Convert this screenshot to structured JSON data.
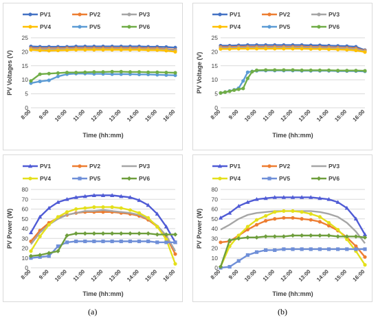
{
  "captions": [
    "(a)",
    "(b)"
  ],
  "colors": {
    "PV1": "#4472C4",
    "PV2": "#ED7D31",
    "PV3": "#A5A5A5",
    "PV4": "#FFC000",
    "PV5": "#5B9BD5",
    "PV6": "#70AD47",
    "PV1_power": "#4F5BD5",
    "PV4_power": "#E4E01B",
    "PV5_power": "#6F8FD8",
    "PV6_power": "#6E9E3C",
    "grid": "#d9d9d9"
  },
  "chart_data": [
    {
      "type": "line",
      "panel": "top-left",
      "ylabel": "PV Voltages (V)",
      "xlabel": "Time (hh:mm)",
      "ylim": [
        0,
        25
      ],
      "yticks": [
        0,
        5,
        10,
        15,
        20,
        25
      ],
      "x_ticks": [
        "8:00",
        "9:00",
        "10:00",
        "11:00",
        "12:00",
        "13:00",
        "14:00",
        "15:00",
        "16:00"
      ],
      "x_range": [
        8,
        16
      ],
      "marker": "circle",
      "grid": true,
      "legend_position": "top",
      "series": [
        {
          "name": "PV1",
          "x": [
            8,
            8.5,
            9,
            9.5,
            10,
            10.5,
            11,
            11.5,
            12,
            12.5,
            13,
            13.5,
            14,
            14.5,
            15,
            15.5,
            16
          ],
          "values": [
            21.9,
            21.8,
            21.8,
            21.8,
            21.8,
            21.9,
            21.9,
            21.9,
            21.9,
            21.9,
            21.9,
            21.9,
            21.9,
            21.8,
            21.8,
            21.7,
            21.5
          ]
        },
        {
          "name": "PV2",
          "x": [
            8,
            8.5,
            9,
            9.5,
            10,
            10.5,
            11,
            11.5,
            12,
            12.5,
            13,
            13.5,
            14,
            14.5,
            15,
            15.5,
            16
          ],
          "values": [
            21.3,
            21.2,
            21.2,
            21.2,
            21.3,
            21.3,
            21.3,
            21.3,
            21.3,
            21.3,
            21.3,
            21.3,
            21.3,
            21.2,
            21.2,
            21.0,
            20.7
          ]
        },
        {
          "name": "PV3",
          "x": [
            8,
            8.5,
            9,
            9.5,
            10,
            10.5,
            11,
            11.5,
            12,
            12.5,
            13,
            13.5,
            14,
            14.5,
            15,
            15.5,
            16
          ],
          "values": [
            21.0,
            20.9,
            20.9,
            20.9,
            21.0,
            21.0,
            21.0,
            21.0,
            21.0,
            21.0,
            21.0,
            21.0,
            21.0,
            20.9,
            20.9,
            20.8,
            20.5
          ]
        },
        {
          "name": "PV4",
          "x": [
            8,
            8.5,
            9,
            9.5,
            10,
            10.5,
            11,
            11.5,
            12,
            12.5,
            13,
            13.5,
            14,
            14.5,
            15,
            15.5,
            16
          ],
          "values": [
            20.7,
            20.5,
            20.4,
            20.5,
            20.6,
            20.7,
            20.7,
            20.7,
            20.7,
            20.7,
            20.7,
            20.7,
            20.7,
            20.6,
            20.6,
            20.4,
            20.0
          ]
        },
        {
          "name": "PV5",
          "x": [
            8,
            8.5,
            9,
            9.5,
            10,
            10.5,
            11,
            11.5,
            12,
            12.5,
            13,
            13.5,
            14,
            14.5,
            15,
            15.5,
            16
          ],
          "values": [
            8.8,
            9.4,
            9.8,
            11.2,
            12.0,
            12.2,
            12.2,
            12.1,
            12.1,
            12.0,
            12.0,
            12.0,
            11.9,
            11.9,
            11.8,
            11.7,
            11.6
          ]
        },
        {
          "name": "PV6",
          "x": [
            8,
            8.5,
            9,
            9.5,
            10,
            10.5,
            11,
            11.5,
            12,
            12.5,
            13,
            13.5,
            14,
            14.5,
            15,
            15.5,
            16
          ],
          "values": [
            9.6,
            12.0,
            12.2,
            12.4,
            12.6,
            12.6,
            12.7,
            12.8,
            12.8,
            12.9,
            12.9,
            12.8,
            12.8,
            12.7,
            12.7,
            12.6,
            12.5
          ]
        }
      ]
    },
    {
      "type": "line",
      "panel": "top-right",
      "ylabel": "PV Voltage (V)",
      "xlabel": "Time (hh:mm)",
      "ylim": [
        0,
        25
      ],
      "yticks": [
        0,
        5,
        10,
        15,
        20,
        25
      ],
      "x_ticks": [
        "8:00",
        "9:00",
        "10:00",
        "11:00",
        "12:00",
        "13:00",
        "14:00",
        "15:00",
        "16:00"
      ],
      "x_range": [
        8,
        16
      ],
      "marker": "circle",
      "grid": true,
      "legend_position": "top",
      "series": [
        {
          "name": "PV1",
          "x": [
            8,
            8.5,
            9,
            9.5,
            10,
            10.5,
            11,
            11.5,
            12,
            12.5,
            13,
            13.5,
            14,
            14.5,
            15,
            15.5,
            16
          ],
          "values": [
            22.2,
            22.2,
            22.3,
            22.4,
            22.4,
            22.4,
            22.4,
            22.4,
            22.4,
            22.4,
            22.3,
            22.3,
            22.2,
            22.1,
            22.0,
            21.8,
            20.6
          ]
        },
        {
          "name": "PV2",
          "x": [
            8,
            8.5,
            9,
            9.5,
            10,
            10.5,
            11,
            11.5,
            12,
            12.5,
            13,
            13.5,
            14,
            14.5,
            15,
            15.5,
            16
          ],
          "values": [
            21.7,
            21.7,
            21.8,
            21.8,
            21.8,
            21.8,
            21.8,
            21.8,
            21.8,
            21.8,
            21.7,
            21.7,
            21.6,
            21.5,
            21.4,
            21.2,
            20.4
          ]
        },
        {
          "name": "PV3",
          "x": [
            8,
            8.5,
            9,
            9.5,
            10,
            10.5,
            11,
            11.5,
            12,
            12.5,
            13,
            13.5,
            14,
            14.5,
            15,
            15.5,
            16
          ],
          "values": [
            21.4,
            21.4,
            21.5,
            21.5,
            21.5,
            21.5,
            21.5,
            21.5,
            21.5,
            21.5,
            21.4,
            21.4,
            21.3,
            21.2,
            21.1,
            20.9,
            20.2
          ]
        },
        {
          "name": "PV4",
          "x": [
            8,
            8.5,
            9,
            9.5,
            10,
            10.5,
            11,
            11.5,
            12,
            12.5,
            13,
            13.5,
            14,
            14.5,
            15,
            15.5,
            16
          ],
          "values": [
            21.0,
            21.0,
            21.1,
            21.1,
            21.1,
            21.1,
            21.1,
            21.1,
            21.1,
            21.1,
            21.0,
            21.0,
            20.9,
            20.8,
            20.7,
            20.5,
            19.9
          ]
        },
        {
          "name": "PV5",
          "x": [
            8,
            8.25,
            8.5,
            8.75,
            9,
            9.25,
            9.5,
            9.75,
            10,
            10.5,
            11,
            11.5,
            12,
            12.5,
            13,
            13.5,
            14,
            14.5,
            15,
            15.5,
            16
          ],
          "values": [
            5.3,
            5.6,
            6.0,
            6.4,
            7.0,
            9.6,
            12.7,
            13.0,
            13.2,
            13.3,
            13.3,
            13.3,
            13.3,
            13.2,
            13.2,
            13.2,
            13.2,
            13.1,
            13.1,
            13.1,
            13.0
          ]
        },
        {
          "name": "PV6",
          "x": [
            8,
            8.25,
            8.5,
            8.75,
            9,
            9.25,
            9.5,
            9.75,
            10,
            10.5,
            11,
            11.5,
            12,
            12.5,
            13,
            13.5,
            14,
            14.5,
            15,
            15.5,
            16
          ],
          "values": [
            5.3,
            5.6,
            5.9,
            6.3,
            6.6,
            6.9,
            10.5,
            12.9,
            13.4,
            13.5,
            13.5,
            13.5,
            13.5,
            13.4,
            13.4,
            13.4,
            13.4,
            13.3,
            13.3,
            13.3,
            13.2
          ]
        }
      ]
    },
    {
      "type": "line",
      "panel": "bottom-left",
      "ylabel": "PV Power (W)",
      "xlabel": "Time (hh:mm)",
      "ylim": [
        0,
        80
      ],
      "yticks": [
        0,
        10,
        20,
        30,
        40,
        50,
        60,
        70,
        80
      ],
      "x_ticks": [
        "8:00",
        "9:00",
        "10:00",
        "11:00",
        "12:00",
        "13:00",
        "14:00",
        "15:00",
        "16:00"
      ],
      "x_range": [
        8,
        16
      ],
      "grid": true,
      "legend_position": "top",
      "series": [
        {
          "name": "PV1",
          "marker": "triangle",
          "x": [
            8,
            8.5,
            9,
            9.5,
            10,
            10.5,
            11,
            11.5,
            12,
            12.5,
            13,
            13.5,
            14,
            14.5,
            15,
            15.5,
            16
          ],
          "values": [
            36,
            52,
            61,
            67,
            70,
            72,
            73,
            74,
            74,
            74,
            73,
            72,
            69,
            64,
            55,
            42,
            26
          ]
        },
        {
          "name": "PV2",
          "marker": "circle",
          "x": [
            8,
            8.5,
            9,
            9.5,
            10,
            10.5,
            11,
            11.5,
            12,
            12.5,
            13,
            13.5,
            14,
            14.5,
            15,
            15.5,
            16
          ],
          "values": [
            27,
            38,
            46,
            51,
            54,
            56,
            57,
            57,
            57,
            57,
            56,
            55,
            53,
            49,
            42,
            32,
            14
          ]
        },
        {
          "name": "PV3",
          "marker": "none",
          "x": [
            8,
            8.5,
            9,
            9.5,
            10,
            10.5,
            11,
            11.5,
            12,
            12.5,
            13,
            13.5,
            14,
            14.5,
            15,
            15.5,
            16
          ],
          "values": [
            24,
            36,
            44,
            50,
            54,
            56,
            58,
            58,
            59,
            58,
            57,
            56,
            54,
            50,
            43,
            33,
            17
          ]
        },
        {
          "name": "PV4",
          "marker": "circle",
          "x": [
            8,
            8.5,
            9,
            9.5,
            10,
            10.5,
            11,
            11.5,
            12,
            12.5,
            13,
            13.5,
            14,
            14.5,
            15,
            15.5,
            16
          ],
          "values": [
            17,
            32,
            44,
            52,
            57,
            60,
            61,
            62,
            62,
            62,
            61,
            59,
            56,
            51,
            42,
            29,
            4
          ]
        },
        {
          "name": "PV5",
          "marker": "square",
          "x": [
            8,
            8.5,
            9,
            9.5,
            10,
            10.5,
            11,
            11.5,
            12,
            12.5,
            13,
            13.5,
            14,
            14.5,
            15,
            15.5,
            16
          ],
          "values": [
            10,
            11,
            12,
            22,
            26,
            27,
            27,
            27,
            27,
            27,
            27,
            27,
            27,
            27,
            26,
            26,
            26
          ]
        },
        {
          "name": "PV6",
          "marker": "diamond",
          "x": [
            8,
            8.5,
            9,
            9.5,
            10,
            10.5,
            11,
            11.5,
            12,
            12.5,
            13,
            13.5,
            14,
            14.5,
            15,
            15.5,
            16
          ],
          "values": [
            12,
            13,
            15,
            17,
            33,
            35,
            35,
            35,
            35,
            35,
            35,
            35,
            35,
            35,
            34,
            34,
            34
          ]
        }
      ]
    },
    {
      "type": "line",
      "panel": "bottom-right",
      "ylabel": "PV Power (W)",
      "xlabel": "Time (hh:mm)",
      "ylim": [
        0,
        80
      ],
      "yticks": [
        0,
        10,
        20,
        30,
        40,
        50,
        60,
        70,
        80
      ],
      "x_ticks": [
        "8:00",
        "9:00",
        "10:00",
        "11:00",
        "12:00",
        "13:00",
        "14:00",
        "15:00",
        "16:00"
      ],
      "x_range": [
        8,
        16
      ],
      "grid": true,
      "legend_position": "top",
      "series": [
        {
          "name": "PV1",
          "marker": "triangle",
          "x": [
            8,
            8.5,
            9,
            9.5,
            10,
            10.5,
            11,
            11.5,
            12,
            12.5,
            13,
            13.5,
            14,
            14.5,
            15,
            15.5,
            16
          ],
          "values": [
            51,
            56,
            63,
            67,
            70,
            71,
            72,
            72,
            72,
            72,
            72,
            71,
            70,
            67,
            61,
            50,
            34
          ]
        },
        {
          "name": "PV2",
          "marker": "circle",
          "x": [
            8,
            8.5,
            9,
            9.5,
            10,
            10.5,
            11,
            11.5,
            12,
            12.5,
            13,
            13.5,
            14,
            14.5,
            15,
            15.5,
            16
          ],
          "values": [
            26,
            27,
            33,
            39,
            44,
            48,
            50,
            51,
            51,
            50,
            49,
            47,
            43,
            38,
            31,
            22,
            11
          ]
        },
        {
          "name": "PV3",
          "marker": "none",
          "x": [
            8,
            8.5,
            9,
            9.5,
            10,
            10.5,
            11,
            11.5,
            12,
            12.5,
            13,
            13.5,
            14,
            14.5,
            15,
            15.5,
            16
          ],
          "values": [
            39,
            44,
            50,
            54,
            56,
            57,
            58,
            58,
            58,
            58,
            58,
            57,
            55,
            52,
            46,
            37,
            25
          ]
        },
        {
          "name": "PV4",
          "marker": "circle",
          "x": [
            8,
            8.5,
            9,
            9.5,
            10,
            10.5,
            11,
            11.5,
            12,
            12.5,
            13,
            13.5,
            14,
            14.5,
            15,
            15.5,
            16
          ],
          "values": [
            1,
            22,
            33,
            42,
            49,
            53,
            57,
            58,
            58,
            57,
            55,
            52,
            46,
            39,
            29,
            17,
            3
          ]
        },
        {
          "name": "PV5",
          "marker": "square",
          "x": [
            8,
            8.5,
            9,
            9.5,
            10,
            10.5,
            11,
            11.5,
            12,
            12.5,
            13,
            13.5,
            14,
            14.5,
            15,
            15.5,
            16
          ],
          "values": [
            0,
            1,
            7,
            13,
            16,
            18,
            18,
            19,
            19,
            19,
            19,
            19,
            19,
            19,
            19,
            19,
            19
          ]
        },
        {
          "name": "PV6",
          "marker": "diamond",
          "x": [
            8,
            8.5,
            9,
            9.5,
            10,
            10.5,
            11,
            11.5,
            12,
            12.5,
            13,
            13.5,
            14,
            14.5,
            15,
            15.5,
            16
          ],
          "values": [
            1,
            28,
            30,
            31,
            31,
            32,
            32,
            32,
            33,
            33,
            33,
            33,
            33,
            32,
            32,
            32,
            31
          ]
        }
      ]
    }
  ]
}
